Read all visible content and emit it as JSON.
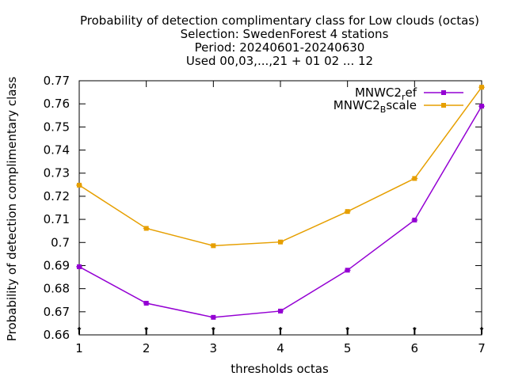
{
  "chart_data": {
    "type": "line",
    "title_lines": [
      "Probability of detection complimentary class  for Low clouds (octas)",
      "Selection: SwedenForest      4 stations",
      "Period: 20240601-20240630",
      "Used 00,03,...,21 + 01 02 ... 12"
    ],
    "xlabel": "thresholds octas",
    "ylabel": "Probability of detection complimentary class",
    "x": [
      1,
      2,
      3,
      4,
      5,
      6,
      7
    ],
    "xlim": [
      1,
      7
    ],
    "ylim": [
      0.66,
      0.77
    ],
    "x_ticks": [
      "1",
      "2",
      "3",
      "4",
      "5",
      "6",
      "7"
    ],
    "y_ticks": [
      "0.66",
      "0.67",
      "0.68",
      "0.69",
      "0.7",
      "0.71",
      "0.72",
      "0.73",
      "0.74",
      "0.75",
      "0.76",
      "0.77"
    ],
    "grid": false,
    "legend_position": "top-right",
    "series": [
      {
        "name_main": "MNWC2",
        "name_sub": "r",
        "name_tail": "ef",
        "color": "#9400d3",
        "values": [
          0.6895,
          0.6737,
          0.6676,
          0.6703,
          0.688,
          0.7097,
          0.759
        ]
      },
      {
        "name_main": "MNWC2",
        "name_sub": "B",
        "name_tail": "scale",
        "color": "#e69f00",
        "values": [
          0.7248,
          0.7061,
          0.6986,
          0.7002,
          0.7134,
          0.7277,
          0.7672
        ]
      }
    ]
  }
}
